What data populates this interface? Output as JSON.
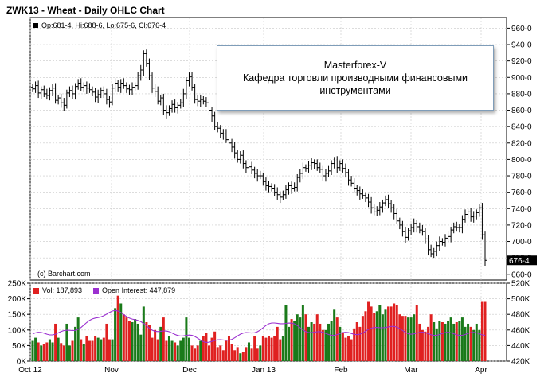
{
  "header": {
    "title": "ZWK13 - Wheat - Daily OHLC Chart"
  },
  "legend": {
    "ohlc": "Op:681-4, Hi:688-6, Lo:675-6, Cl:676-4",
    "volume": "Vol: 187,893",
    "open_interest": "Open Interest: 447,879"
  },
  "credit": "(c) Barchart.com",
  "infobox": {
    "line1": "Masterforex-V",
    "line2": "Кафедра торговли производными финансовыми",
    "line3": "инструментами"
  },
  "colors": {
    "up": "#1a7a1a",
    "down": "#e02020",
    "oi_line": "#9b30d0",
    "ohlc": "#000000"
  },
  "chart_data": [
    {
      "type": "ohlc",
      "title": "ZWK13 - Wheat - Daily OHLC Chart",
      "x_tick_labels": [
        "Oct 12",
        "Nov",
        "Dec",
        "Jan 13",
        "Feb",
        "Mar",
        "Apr"
      ],
      "y_tick_labels": [
        "660-0",
        "680-0",
        "700-0",
        "720-0",
        "740-0",
        "760-0",
        "780-0",
        "800-0",
        "820-0",
        "840-0",
        "860-0",
        "880-0",
        "900-0",
        "920-0",
        "940-0",
        "960-0"
      ],
      "ylim": [
        653,
        973
      ],
      "last_price_label": "676-4",
      "grid": true,
      "close": [
        886,
        890,
        881,
        885,
        880,
        878,
        884,
        887,
        872,
        875,
        869,
        866,
        881,
        884,
        880,
        889,
        893,
        888,
        890,
        887,
        885,
        882,
        876,
        879,
        884,
        880,
        873,
        870,
        887,
        893,
        888,
        893,
        890,
        886,
        885,
        888,
        890,
        902,
        909,
        929,
        917,
        902,
        887,
        883,
        871,
        875,
        860,
        857,
        862,
        867,
        863,
        866,
        869,
        880,
        896,
        901,
        888,
        873,
        871,
        873,
        871,
        869,
        860,
        853,
        840,
        838,
        832,
        831,
        824,
        820,
        815,
        808,
        800,
        805,
        795,
        790,
        791,
        787,
        783,
        780,
        780,
        773,
        768,
        767,
        765,
        760,
        757,
        754,
        757,
        763,
        768,
        765,
        766,
        778,
        783,
        790,
        789,
        793,
        796,
        795,
        790,
        788,
        780,
        783,
        786,
        795,
        798,
        790,
        795,
        789,
        784,
        775,
        771,
        765,
        762,
        758,
        756,
        753,
        748,
        741,
        736,
        738,
        742,
        747,
        751,
        746,
        741,
        734,
        725,
        720,
        712,
        705,
        713,
        717,
        722,
        718,
        714,
        712,
        703,
        690,
        685,
        688,
        695,
        700,
        699,
        704,
        706,
        714,
        718,
        717,
        717,
        727,
        733,
        736,
        730,
        731,
        735,
        741,
        708,
        677
      ],
      "volume_series": {
        "name": "Vol",
        "axis_labels": [
          "0K",
          "50K",
          "100K",
          "150K",
          "200K",
          "250K"
        ],
        "values": [
          65,
          75,
          60,
          50,
          55,
          60,
          70,
          60,
          120,
          75,
          58,
          50,
          120,
          50,
          65,
          110,
          140,
          70,
          55,
          80,
          65,
          65,
          80,
          75,
          70,
          75,
          120,
          70,
          70,
          170,
          210,
          185,
          150,
          140,
          130,
          125,
          135,
          120,
          85,
          175,
          125,
          115,
          75,
          100,
          70,
          110,
          140,
          65,
          80,
          65,
          60,
          50,
          65,
          75,
          140,
          75,
          50,
          40,
          50,
          65,
          80,
          90,
          50,
          75,
          95,
          45,
          50,
          35,
          65,
          80,
          55,
          35,
          45,
          25,
          30,
          45,
          60,
          40,
          80,
          40,
          50,
          80,
          75,
          80,
          75,
          80,
          110,
          70,
          80,
          180,
          110,
          135,
          130,
          150,
          140,
          180,
          150,
          110,
          125,
          120,
          150,
          120,
          100,
          100,
          120,
          130,
          165,
          140,
          110,
          90,
          75,
          80,
          70,
          105,
          125,
          110,
          145,
          160,
          190,
          175,
          155,
          160,
          180,
          150,
          165,
          175,
          175,
          185,
          180,
          150,
          145,
          145,
          140,
          140,
          150,
          180,
          120,
          100,
          95,
          110,
          150,
          125,
          105,
          130,
          125,
          120,
          130,
          140,
          120,
          125,
          130,
          140,
          110,
          120,
          110,
          100,
          120,
          100,
          190,
          190
        ]
      },
      "open_interest_series": {
        "name": "Open Interest",
        "axis_labels": [
          "420K",
          "440K",
          "460K",
          "480K",
          "500K",
          "520K"
        ],
        "ylim": [
          420,
          520
        ]
      }
    }
  ]
}
